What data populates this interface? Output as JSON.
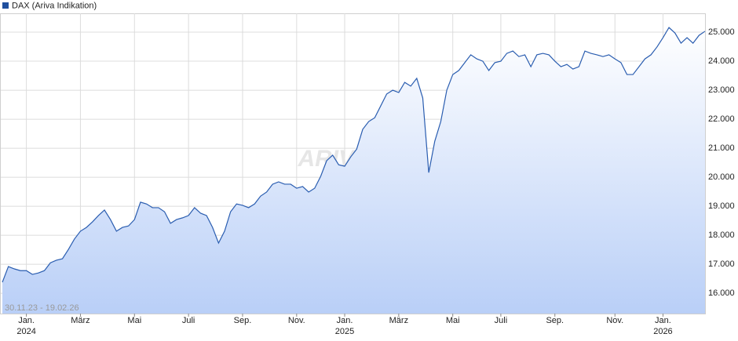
{
  "chart_data": {
    "type": "area",
    "legend": "DAX (Ariva Indikation)",
    "date_range": "30.11.23 - 19.02.26",
    "watermark": "ARIVA.DE",
    "series": [
      {
        "name": "DAX (Ariva Indikation)",
        "color": "#2a5db0",
        "values": [
          16380,
          16920,
          16840,
          16780,
          16780,
          16650,
          16700,
          16780,
          17050,
          17140,
          17190,
          17510,
          17870,
          18140,
          18270,
          18460,
          18680,
          18870,
          18540,
          18140,
          18270,
          18320,
          18540,
          19140,
          19080,
          18950,
          18950,
          18810,
          18410,
          18540,
          18600,
          18680,
          18950,
          18760,
          18680,
          18270,
          17730,
          18140,
          18810,
          19080,
          19030,
          18950,
          19080,
          19350,
          19490,
          19760,
          19840,
          19760,
          19760,
          19620,
          19680,
          19490,
          19620,
          20030,
          20570,
          20760,
          20430,
          20380,
          20700,
          20970,
          21650,
          21920,
          22050,
          22460,
          22870,
          23000,
          22920,
          23270,
          23140,
          23410,
          22730,
          20160,
          21240,
          21920,
          23000,
          23540,
          23680,
          23950,
          24220,
          24080,
          24000,
          23680,
          23950,
          24000,
          24270,
          24350,
          24160,
          24220,
          23810,
          24220,
          24270,
          24220,
          24000,
          23810,
          23890,
          23730,
          23810,
          24350,
          24270,
          24220,
          24160,
          24220,
          24080,
          23950,
          23540,
          23540,
          23810,
          24080,
          24220,
          24490,
          24810,
          25160,
          24970,
          24620,
          24810,
          24620,
          24890,
          25030
        ]
      }
    ],
    "categories": [
      null,
      null,
      null,
      null,
      "Jan.\n2024",
      null,
      null,
      null,
      null,
      null,
      null,
      null,
      null,
      "März",
      null,
      null,
      null,
      null,
      null,
      null,
      null,
      null,
      "Mai",
      null,
      null,
      null,
      null,
      null,
      null,
      null,
      null,
      "Juli",
      null,
      null,
      null,
      null,
      null,
      null,
      null,
      null,
      "Sep.",
      null,
      null,
      null,
      null,
      null,
      null,
      null,
      null,
      "Nov.",
      null,
      null,
      null,
      null,
      null,
      null,
      null,
      "Jan.\n2025",
      null,
      null,
      null,
      null,
      null,
      null,
      null,
      null,
      "März",
      null,
      null,
      null,
      null,
      null,
      null,
      null,
      null,
      "Mai",
      null,
      null,
      null,
      null,
      null,
      null,
      null,
      "Juli",
      null,
      null,
      null,
      null,
      null,
      null,
      null,
      null,
      "Sep.",
      null,
      null,
      null,
      null,
      null,
      null,
      null,
      null,
      null,
      "Nov.",
      null,
      null,
      null,
      null,
      null,
      null,
      null,
      "Jan.\n2026",
      null,
      null,
      null,
      null,
      null,
      null,
      null
    ],
    "ylim": [
      15300,
      25650
    ],
    "yticks": [
      {
        "value": 16000,
        "label": "16.000"
      },
      {
        "value": 17000,
        "label": "17.000"
      },
      {
        "value": 18000,
        "label": "18.000"
      },
      {
        "value": 19000,
        "label": "19.000"
      },
      {
        "value": 20000,
        "label": "20.000"
      },
      {
        "value": 21000,
        "label": "21.000"
      },
      {
        "value": 22000,
        "label": "22.000"
      },
      {
        "value": 23000,
        "label": "23.000"
      },
      {
        "value": 24000,
        "label": "24.000"
      },
      {
        "value": 25000,
        "label": "25.000"
      }
    ],
    "grid": true
  }
}
